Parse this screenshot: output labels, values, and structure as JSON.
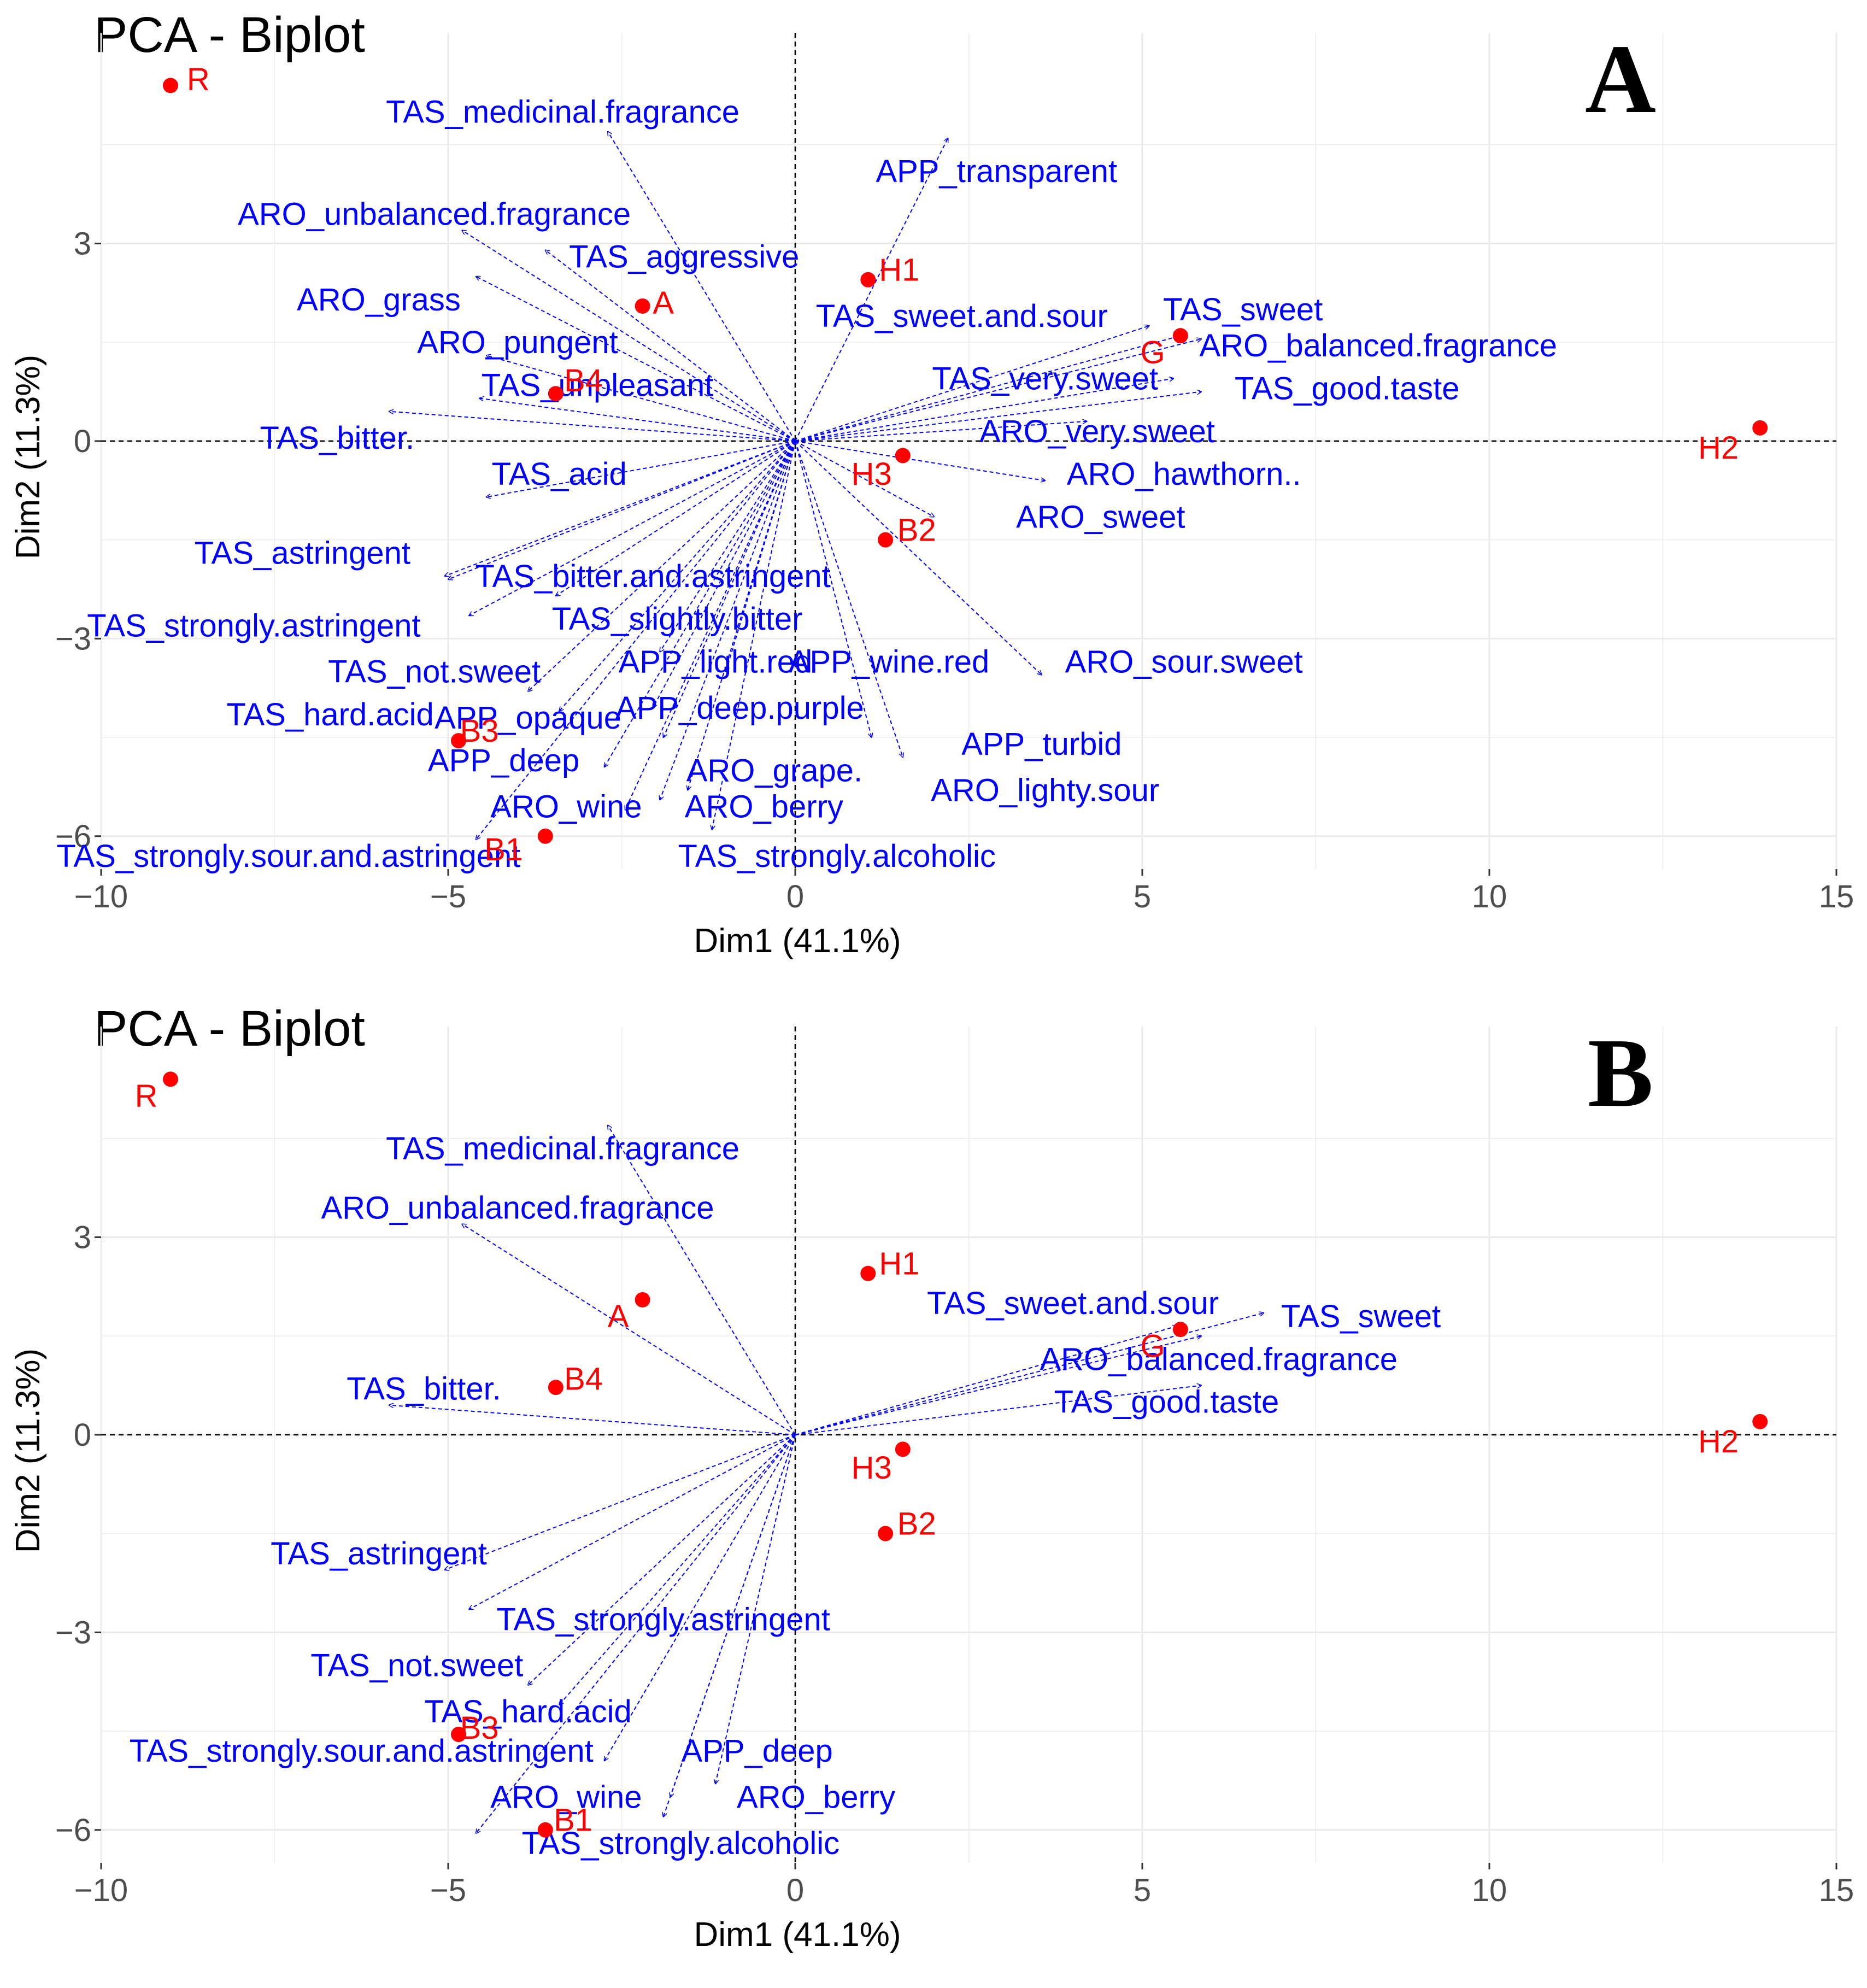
{
  "chart_data": [
    {
      "type": "scatter",
      "subtype": "pca-biplot",
      "title": "PCA - Biplot",
      "panel_label": "A",
      "xlabel": "Dim1 (41.1%)",
      "ylabel": "Dim2 (11.3%)",
      "xlim": [
        -10,
        15
      ],
      "ylim": [
        -6.5,
        6.2
      ],
      "x_ticks": [
        -10,
        -5,
        0,
        5,
        10,
        15
      ],
      "y_ticks": [
        -6,
        -3,
        0,
        3
      ],
      "x_tick_labels": [
        "−10",
        "−5",
        "0",
        "5",
        "10",
        "15"
      ],
      "y_tick_labels": [
        "−6",
        "−3",
        "0",
        "3"
      ],
      "grid": true,
      "colors": {
        "points": "#ff0000",
        "variables": "#0000ff",
        "axis_text": "#4d4d4d",
        "grid": "#ebebeb"
      },
      "individuals": [
        {
          "name": "R",
          "x": -9.0,
          "y": 5.4,
          "lx": -8.6,
          "ly": 5.5
        },
        {
          "name": "A",
          "x": -2.2,
          "y": 2.05,
          "lx": -1.9,
          "ly": 2.1
        },
        {
          "name": "H1",
          "x": 1.05,
          "y": 2.45,
          "lx": 1.5,
          "ly": 2.6
        },
        {
          "name": "G",
          "x": 5.55,
          "y": 1.6,
          "lx": 5.15,
          "ly": 1.35
        },
        {
          "name": "B4",
          "x": -3.45,
          "y": 0.72,
          "lx": -3.05,
          "ly": 0.92
        },
        {
          "name": "H2",
          "x": 13.9,
          "y": 0.2,
          "lx": 13.3,
          "ly": -0.1
        },
        {
          "name": "H3",
          "x": 1.55,
          "y": -0.22,
          "lx": 1.1,
          "ly": -0.5
        },
        {
          "name": "B2",
          "x": 1.3,
          "y": -1.5,
          "lx": 1.75,
          "ly": -1.35
        },
        {
          "name": "B3",
          "x": -4.85,
          "y": -4.55,
          "lx": -4.55,
          "ly": -4.4
        },
        {
          "name": "B1",
          "x": -3.6,
          "y": -6.0,
          "lx": -4.2,
          "ly": -6.2
        }
      ],
      "variables": [
        {
          "name": "TAS_medicinal.fragrance",
          "x": -2.7,
          "y": 4.7,
          "lx": -3.35,
          "ly": 5.0
        },
        {
          "name": "APP_transparent",
          "x": 2.2,
          "y": 4.6,
          "lx": 2.9,
          "ly": 4.1
        },
        {
          "name": "ARO_unbalanced.fragrance",
          "x": -4.8,
          "y": 3.2,
          "lx": -5.2,
          "ly": 3.45
        },
        {
          "name": "TAS_aggressive",
          "x": -3.6,
          "y": 2.9,
          "lx": -1.6,
          "ly": 2.8
        },
        {
          "name": "ARO_grass",
          "x": -4.6,
          "y": 2.5,
          "lx": -6.0,
          "ly": 2.15
        },
        {
          "name": "ARO_pungent",
          "x": -4.45,
          "y": 1.3,
          "lx": -4.0,
          "ly": 1.5
        },
        {
          "name": "TAS_unpleasant",
          "x": -4.55,
          "y": 0.65,
          "lx": -2.85,
          "ly": 0.85
        },
        {
          "name": "TAS_bitter.",
          "x": -5.85,
          "y": 0.45,
          "lx": -6.6,
          "ly": 0.05
        },
        {
          "name": "TAS_acid",
          "x": -4.45,
          "y": -0.85,
          "lx": -3.4,
          "ly": -0.5
        },
        {
          "name": "TAS_astringent",
          "x": -5.05,
          "y": -2.05,
          "lx": -7.1,
          "ly": -1.7
        },
        {
          "name": "TAS_bitter.and.astringent",
          "x": -5.0,
          "y": -2.1,
          "lx": -2.05,
          "ly": -2.05
        },
        {
          "name": "TAS_slightly.bitter",
          "x": -3.45,
          "y": -2.35,
          "lx": -1.7,
          "ly": -2.7
        },
        {
          "name": "TAS_strongly.astringent",
          "x": -4.7,
          "y": -2.65,
          "lx": -7.8,
          "ly": -2.8
        },
        {
          "name": "APP_light.red",
          "x": -1.95,
          "y": -3.2,
          "lx": -1.15,
          "ly": -3.35
        },
        {
          "name": "APP_wine.red",
          "x": -1.0,
          "y": -3.5,
          "lx": 1.35,
          "ly": -3.35
        },
        {
          "name": "ARO_sour.sweet",
          "x": 3.55,
          "y": -3.55,
          "lx": 5.6,
          "ly": -3.35
        },
        {
          "name": "TAS_not.sweet",
          "x": -3.85,
          "y": -3.8,
          "lx": -5.2,
          "ly": -3.5
        },
        {
          "name": "TAS_hard.acid",
          "x": -3.4,
          "y": -4.1,
          "lx": -6.7,
          "ly": -4.15
        },
        {
          "name": "APP_opaque",
          "x": -2.05,
          "y": -4.05,
          "lx": -3.85,
          "ly": -4.2
        },
        {
          "name": "APP_deep.purple",
          "x": -1.9,
          "y": -4.5,
          "lx": -0.8,
          "ly": -4.05
        },
        {
          "name": "APP_turbid",
          "x": 1.1,
          "y": -4.5,
          "lx": 3.55,
          "ly": -4.6
        },
        {
          "name": "APP_deep",
          "x": -2.75,
          "y": -4.95,
          "lx": -4.2,
          "ly": -4.85
        },
        {
          "name": "ARO_grape.",
          "x": -1.55,
          "y": -5.3,
          "lx": -0.3,
          "ly": -5.0
        },
        {
          "name": "ARO_lighty.sour",
          "x": 1.55,
          "y": -4.8,
          "lx": 3.6,
          "ly": -5.3
        },
        {
          "name": "ARO_wine",
          "x": -2.45,
          "y": -5.6,
          "lx": -3.3,
          "ly": -5.55
        },
        {
          "name": "ARO_berry",
          "x": -1.95,
          "y": -5.45,
          "lx": -0.45,
          "ly": -5.55
        },
        {
          "name": "TAS_strongly.sour.and.astringent",
          "x": -4.6,
          "y": -6.05,
          "lx": -7.3,
          "ly": -6.3
        },
        {
          "name": "TAS_strongly.alcoholic",
          "x": -1.2,
          "y": -5.9,
          "lx": 0.6,
          "ly": -6.3
        },
        {
          "name": "TAS_sweet.and.sour",
          "x": 5.1,
          "y": 1.75,
          "lx": 2.4,
          "ly": 1.9
        },
        {
          "name": "TAS_sweet",
          "x": 5.55,
          "y": 1.6,
          "lx": 6.45,
          "ly": 2.0
        },
        {
          "name": "ARO_balanced.fragrance",
          "x": 5.85,
          "y": 1.55,
          "lx": 8.4,
          "ly": 1.45
        },
        {
          "name": "TAS_very.sweet",
          "x": 5.45,
          "y": 0.95,
          "lx": 3.6,
          "ly": 0.95
        },
        {
          "name": "TAS_good.taste",
          "x": 5.85,
          "y": 0.75,
          "lx": 7.95,
          "ly": 0.8
        },
        {
          "name": "ARO_very.sweet",
          "x": 4.2,
          "y": 0.3,
          "lx": 4.35,
          "ly": 0.15
        },
        {
          "name": "ARO_hawthorn..",
          "x": 3.6,
          "y": -0.6,
          "lx": 5.6,
          "ly": -0.5
        },
        {
          "name": "ARO_sweet",
          "x": 2.0,
          "y": -1.15,
          "lx": 4.4,
          "ly": -1.15
        }
      ]
    },
    {
      "type": "scatter",
      "subtype": "pca-biplot",
      "title": "PCA - Biplot",
      "panel_label": "B",
      "xlabel": "Dim1 (41.1%)",
      "ylabel": "Dim2 (11.3%)",
      "xlim": [
        -10,
        15
      ],
      "ylim": [
        -6.5,
        6.2
      ],
      "x_ticks": [
        -10,
        -5,
        0,
        5,
        10,
        15
      ],
      "y_ticks": [
        -6,
        -3,
        0,
        3
      ],
      "x_tick_labels": [
        "−10",
        "−5",
        "0",
        "5",
        "10",
        "15"
      ],
      "y_tick_labels": [
        "−6",
        "−3",
        "0",
        "3"
      ],
      "grid": true,
      "colors": {
        "points": "#ff0000",
        "variables": "#0000ff",
        "axis_text": "#4d4d4d",
        "grid": "#ebebeb"
      },
      "individuals": [
        {
          "name": "R",
          "x": -9.0,
          "y": 5.4,
          "lx": -9.35,
          "ly": 5.15
        },
        {
          "name": "A",
          "x": -2.2,
          "y": 2.05,
          "lx": -2.55,
          "ly": 1.8
        },
        {
          "name": "H1",
          "x": 1.05,
          "y": 2.45,
          "lx": 1.5,
          "ly": 2.6
        },
        {
          "name": "G",
          "x": 5.55,
          "y": 1.6,
          "lx": 5.15,
          "ly": 1.35
        },
        {
          "name": "B4",
          "x": -3.45,
          "y": 0.72,
          "lx": -3.05,
          "ly": 0.85
        },
        {
          "name": "H2",
          "x": 13.9,
          "y": 0.2,
          "lx": 13.3,
          "ly": -0.1
        },
        {
          "name": "H3",
          "x": 1.55,
          "y": -0.22,
          "lx": 1.1,
          "ly": -0.5
        },
        {
          "name": "B2",
          "x": 1.3,
          "y": -1.5,
          "lx": 1.75,
          "ly": -1.35
        },
        {
          "name": "B3",
          "x": -4.85,
          "y": -4.55,
          "lx": -4.55,
          "ly": -4.45
        },
        {
          "name": "B1",
          "x": -3.6,
          "y": -6.0,
          "lx": -3.2,
          "ly": -5.85
        }
      ],
      "variables": [
        {
          "name": "TAS_medicinal.fragrance",
          "x": -2.7,
          "y": 4.7,
          "lx": -3.35,
          "ly": 4.35
        },
        {
          "name": "ARO_unbalanced.fragrance",
          "x": -4.8,
          "y": 3.2,
          "lx": -4.0,
          "ly": 3.45
        },
        {
          "name": "TAS_bitter.",
          "x": -5.85,
          "y": 0.45,
          "lx": -5.35,
          "ly": 0.7
        },
        {
          "name": "TAS_astringent",
          "x": -5.05,
          "y": -2.05,
          "lx": -6.0,
          "ly": -1.8
        },
        {
          "name": "TAS_strongly.astringent",
          "x": -4.7,
          "y": -2.65,
          "lx": -1.9,
          "ly": -2.8
        },
        {
          "name": "TAS_not.sweet",
          "x": -3.85,
          "y": -3.8,
          "lx": -5.45,
          "ly": -3.5
        },
        {
          "name": "TAS_hard.acid",
          "x": -3.4,
          "y": -4.1,
          "lx": -3.85,
          "ly": -4.2
        },
        {
          "name": "TAS_strongly.sour.and.astringent",
          "x": -4.6,
          "y": -6.05,
          "lx": -6.25,
          "ly": -4.8
        },
        {
          "name": "APP_deep",
          "x": -2.75,
          "y": -4.95,
          "lx": -0.55,
          "ly": -4.8
        },
        {
          "name": "ARO_wine",
          "x": -1.8,
          "y": -5.5,
          "lx": -3.3,
          "ly": -5.5
        },
        {
          "name": "ARO_berry",
          "x": -1.15,
          "y": -5.3,
          "lx": 0.3,
          "ly": -5.5
        },
        {
          "name": "TAS_strongly.alcoholic",
          "x": -1.9,
          "y": -5.8,
          "lx": -1.65,
          "ly": -6.2
        },
        {
          "name": "TAS_sweet.and.sour",
          "x": 5.5,
          "y": 1.65,
          "lx": 4.0,
          "ly": 2.0
        },
        {
          "name": "TAS_sweet",
          "x": 6.75,
          "y": 1.85,
          "lx": 8.15,
          "ly": 1.8
        },
        {
          "name": "ARO_balanced.fragrance",
          "x": 5.85,
          "y": 1.5,
          "lx": 6.1,
          "ly": 1.15
        },
        {
          "name": "TAS_good.taste",
          "x": 5.85,
          "y": 0.75,
          "lx": 5.35,
          "ly": 0.5
        }
      ]
    }
  ]
}
